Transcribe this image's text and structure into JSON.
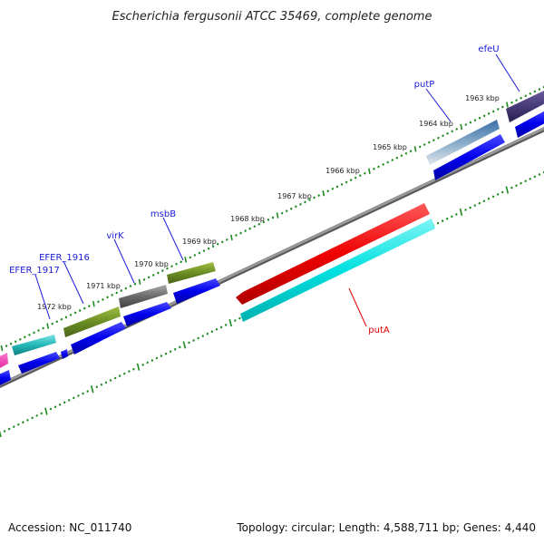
{
  "title": "Escherichia fergusonii ATCC 35469, complete genome",
  "footer": {
    "accession": "Accession: NC_011740",
    "topology": "Topology: circular; Length: 4,588,711 bp; Genes: 4,440"
  },
  "ticks": [
    {
      "label": "1963 kbp"
    },
    {
      "label": "1964 kbp"
    },
    {
      "label": "1965 kbp"
    },
    {
      "label": "1966 kbp"
    },
    {
      "label": "1967 kbp"
    },
    {
      "label": "1968 kbp"
    },
    {
      "label": "1969 kbp"
    },
    {
      "label": "1970 kbp"
    },
    {
      "label": "1971 kbp"
    },
    {
      "label": "1972 kbp"
    }
  ],
  "genes": [
    {
      "label": "efeU",
      "color": "#1a1ad6"
    },
    {
      "label": "putP",
      "color": "#1a1ad6"
    },
    {
      "label": "msbB",
      "color": "#1a1ad6"
    },
    {
      "label": "virK",
      "color": "#1a1ad6"
    },
    {
      "label": "EFER_1916",
      "color": "#1a1ad6"
    },
    {
      "label": "EFER_1917",
      "color": "#1a1ad6"
    },
    {
      "label": "putA",
      "color": "#e00000"
    }
  ],
  "colors": {
    "backbone": "#8a8a8a",
    "tick_dots": "#1f8a1f",
    "cds": "#0000ee",
    "putA_gene": "#ee0000",
    "putA_cds": "#00e0e0"
  }
}
